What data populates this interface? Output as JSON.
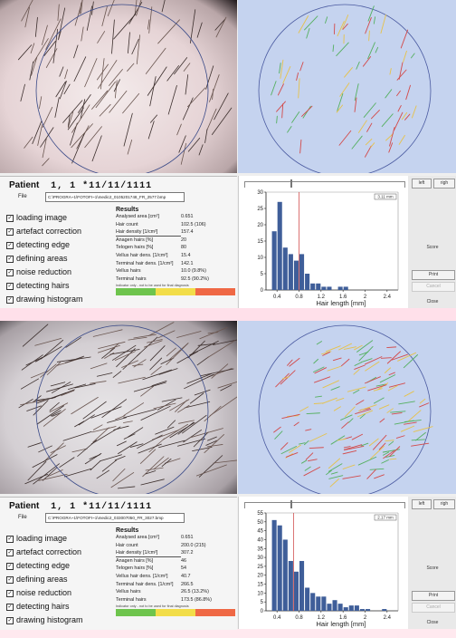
{
  "panels": [
    {
      "patient_label": "Patient",
      "patient_value": "1, 1 *11/11/1111",
      "file_label": "File",
      "file_path": "C:\\PROGRA~1\\FOTOFI~1\\medic2_0105201748_FR_2577.bmp",
      "steps": [
        "loading image",
        "artefact correction",
        "detecting edge",
        "defining areas",
        "noise reduction",
        "detecting hairs",
        "drawing histogram"
      ],
      "results_title": "Results",
      "results": [
        {
          "label": "Analysed area [cm²]",
          "value": "0.651"
        },
        {
          "label": "Hair count",
          "value": "102.5 (106)"
        },
        {
          "label": "Hair density [1/cm²]",
          "value": "157.4"
        },
        {
          "label": "Anagen hairs [%]",
          "value": "20"
        },
        {
          "label": "Telogen hairs [%]",
          "value": "80"
        },
        {
          "label": "Vellus hair dens. [1/cm²]",
          "value": "15.4"
        },
        {
          "label": "Terminal hair dens. [1/cm²]",
          "value": "142.1"
        },
        {
          "label": "Vellus hairs",
          "value": "10.0 (9.8%)"
        },
        {
          "label": "Terminal hairs",
          "value": "92.5 (90.2%)"
        }
      ],
      "indicator_note": "Indicator only - not to be used for final diagnosis",
      "legend_value": "3.11 mm",
      "buttons": {
        "left": "left",
        "right": "righ",
        "score": "Score",
        "print": "Print",
        "cancel": "Cancel",
        "close": "Close"
      },
      "chart_data": {
        "type": "bar",
        "xlabel": "Hair length [mm]",
        "x_ticks": [
          "0.4",
          "0.8",
          "1.2",
          "1.6",
          "2",
          "2.4"
        ],
        "y_ticks": [
          "0",
          "5",
          "10",
          "15",
          "20",
          "25",
          "30"
        ],
        "ylim": [
          0,
          30
        ],
        "xlim": [
          0.2,
          2.6
        ],
        "bin_width": 0.1,
        "bin_starts": [
          0.3,
          0.4,
          0.5,
          0.6,
          0.7,
          0.8,
          0.9,
          1.0,
          1.1,
          1.2,
          1.3,
          1.4,
          1.5,
          1.6,
          1.7,
          1.8,
          1.9,
          2.0,
          2.1,
          2.2,
          2.3,
          2.4,
          2.5
        ],
        "values": [
          18,
          27,
          13,
          11,
          9,
          11,
          5,
          2,
          2,
          1,
          1,
          0,
          1,
          1,
          0,
          0,
          0,
          0,
          0,
          0,
          0,
          0,
          0
        ],
        "marker_x": 0.8
      }
    },
    {
      "patient_label": "Patient",
      "patient_value": "1, 1 *11/11/1111",
      "file_label": "File",
      "file_path": "C:\\PROGRA~1\\FOTOFI~1\\medic2_033007050_FR_3027.bmp",
      "steps": [
        "loading image",
        "artefact correction",
        "detecting edge",
        "defining areas",
        "noise reduction",
        "detecting hairs",
        "drawing histogram"
      ],
      "results_title": "Results",
      "results": [
        {
          "label": "Analysed area [cm²]",
          "value": "0.651"
        },
        {
          "label": "Hair count",
          "value": "200.0 (215)"
        },
        {
          "label": "Hair density [1/cm²]",
          "value": "307.2"
        },
        {
          "label": "Anagen hairs [%]",
          "value": "46"
        },
        {
          "label": "Telogen hairs [%]",
          "value": "54"
        },
        {
          "label": "Vellus hair dens. [1/cm²]",
          "value": "40.7"
        },
        {
          "label": "Terminal hair dens. [1/cm²]",
          "value": "266.5"
        },
        {
          "label": "Vellus hairs",
          "value": "26.5 (13.2%)"
        },
        {
          "label": "Terminal hairs",
          "value": "173.5 (86.8%)"
        }
      ],
      "indicator_note": "Indicator only - not to be used for final diagnosis",
      "legend_value": "2.17 mm",
      "buttons": {
        "left": "left",
        "right": "righ",
        "score": "Score",
        "print": "Print",
        "cancel": "Cancel",
        "close": "Close"
      },
      "chart_data": {
        "type": "bar",
        "xlabel": "Hair length [mm]",
        "x_ticks": [
          "0.4",
          "0.8",
          "1.2",
          "1.6",
          "2",
          "2.4"
        ],
        "y_ticks": [
          "0",
          "5",
          "10",
          "15",
          "20",
          "25",
          "30",
          "35",
          "40",
          "45",
          "50",
          "55"
        ],
        "ylim": [
          0,
          55
        ],
        "xlim": [
          0.2,
          2.6
        ],
        "bin_width": 0.1,
        "bin_starts": [
          0.3,
          0.4,
          0.5,
          0.6,
          0.7,
          0.8,
          0.9,
          1.0,
          1.1,
          1.2,
          1.3,
          1.4,
          1.5,
          1.6,
          1.7,
          1.8,
          1.9,
          2.0,
          2.1,
          2.2,
          2.3,
          2.4,
          2.5
        ],
        "values": [
          51,
          48,
          40,
          28,
          22,
          28,
          13,
          10,
          8,
          8,
          4,
          6,
          4,
          2,
          3,
          3,
          1,
          1,
          0,
          0,
          1,
          0,
          0
        ],
        "marker_x": 0.7
      }
    }
  ]
}
